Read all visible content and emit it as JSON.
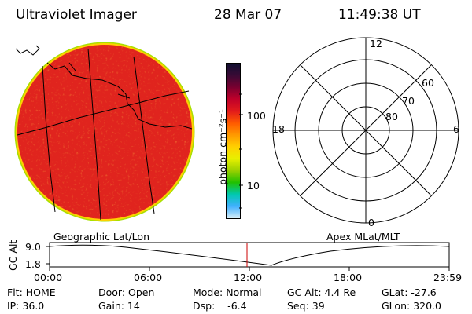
{
  "header": {
    "instrument": "Ultraviolet Imager",
    "date": "28 Mar 07",
    "time": "11:49:38 UT"
  },
  "colorbar": {
    "unit_label": "photon cm⁻²s⁻¹",
    "ticks": [
      "100",
      "10"
    ],
    "colors": [
      "#101030",
      "#3a0a35",
      "#7a0030",
      "#c0002a",
      "#e21b1b",
      "#ff5a00",
      "#ff9a00",
      "#ffd000",
      "#e8f000",
      "#9ad000",
      "#20c000",
      "#00c8b0",
      "#40b0ff",
      "#d8eef8"
    ]
  },
  "image_panel": {
    "label": "Geographic Lat/Lon",
    "colors": {
      "fill": "#e0241e",
      "rim": "#ffd000",
      "edge": "#a8e000"
    }
  },
  "polar_panel": {
    "label": "Apex MLat/MLT",
    "mlt_labels": [
      "12",
      "18",
      "6",
      "0"
    ],
    "lat_labels": [
      "60",
      "70",
      "80"
    ]
  },
  "timeline": {
    "y_label": "GC Alt",
    "y_ticks": [
      "9.0",
      "1.8"
    ],
    "x_ticks": [
      "00:00",
      "06:00",
      "12:00",
      "18:00",
      "23:59"
    ],
    "marker_color": "#cc0000"
  },
  "info": {
    "row1": [
      "Flt: HOME",
      "Door: Open",
      "Mode: Normal",
      "GC Alt: 4.4 Re",
      "GLat: -27.6"
    ],
    "row2": [
      "IP: 36.0",
      "Gain: 14",
      "Dsp:    -6.4",
      "Seq: 39",
      "GLon: 320.0"
    ]
  }
}
